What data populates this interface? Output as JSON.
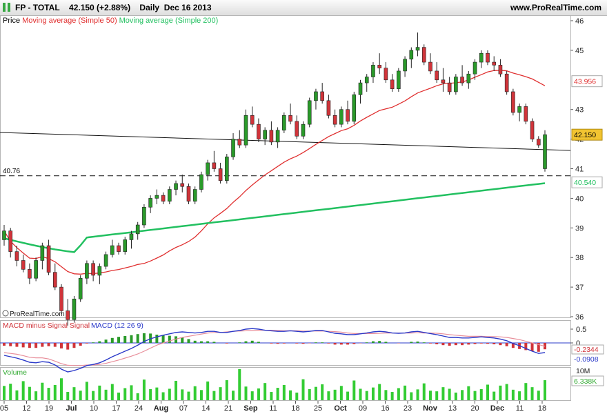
{
  "header": {
    "symbol": "FP - TOTAL",
    "last": "42.150 (+2.88%)",
    "period": "Daily",
    "date": "Dec 16 2013",
    "site": "www.ProRealTime.com"
  },
  "colors": {
    "up": "#2a9a2a",
    "down": "#d0343a",
    "ma50": "#e03030",
    "ma200": "#22c060",
    "macd": "#2a39c9",
    "volume": "#33cc33",
    "accent_tag": "#f2c431"
  },
  "chart_data": {
    "type": "candlestick",
    "legend": {
      "price": "Price",
      "ma50": "Moving average (Simple 50)",
      "ma200": "Moving average (Simple 200)"
    },
    "price_ticks": [
      46,
      45,
      43,
      42,
      41,
      40,
      39,
      38,
      37,
      36
    ],
    "tags": {
      "last": "42.150",
      "ma50": "43.956",
      "ma200": "40.540",
      "level": "40.76",
      "macd": "-0.2344",
      "macd_sig": "-0.0908",
      "vol": "6.338K",
      "vol_max": "10M"
    },
    "date_labels": [
      "05",
      "12",
      "19",
      "Jul",
      "10",
      "17",
      "24",
      "Aug",
      "07",
      "14",
      "21",
      "Sep",
      "11",
      "18",
      "25",
      "Oct",
      "09",
      "16",
      "23",
      "Nov",
      "13",
      "20",
      "Dec",
      "11",
      "18"
    ],
    "candles": [
      [
        38.6,
        39.1,
        38.4,
        38.9
      ],
      [
        38.9,
        39.0,
        38.0,
        38.2
      ],
      [
        38.2,
        38.4,
        37.7,
        37.9
      ],
      [
        37.9,
        38.1,
        37.5,
        37.6
      ],
      [
        37.6,
        37.8,
        37.1,
        37.3
      ],
      [
        37.3,
        38.0,
        37.2,
        37.9
      ],
      [
        37.9,
        38.5,
        37.6,
        38.4
      ],
      [
        38.4,
        38.6,
        37.4,
        37.5
      ],
      [
        37.5,
        37.8,
        36.9,
        37.0
      ],
      [
        37.0,
        37.1,
        36.1,
        36.2
      ],
      [
        36.2,
        36.6,
        35.7,
        35.9
      ],
      [
        35.9,
        36.7,
        35.8,
        36.6
      ],
      [
        36.6,
        37.4,
        36.5,
        37.3
      ],
      [
        37.3,
        37.9,
        37.1,
        37.8
      ],
      [
        37.8,
        37.9,
        37.2,
        37.4
      ],
      [
        37.4,
        37.8,
        37.1,
        37.7
      ],
      [
        37.7,
        38.2,
        37.6,
        38.1
      ],
      [
        38.1,
        38.6,
        38.0,
        38.4
      ],
      [
        38.4,
        38.5,
        38.1,
        38.2
      ],
      [
        38.2,
        38.7,
        38.1,
        38.6
      ],
      [
        38.6,
        38.9,
        38.3,
        38.8
      ],
      [
        38.8,
        39.2,
        38.6,
        39.1
      ],
      [
        39.1,
        39.8,
        39.0,
        39.7
      ],
      [
        39.7,
        40.1,
        39.5,
        40.0
      ],
      [
        40.0,
        40.3,
        39.8,
        40.1
      ],
      [
        40.1,
        40.2,
        39.8,
        39.9
      ],
      [
        39.9,
        40.4,
        39.8,
        40.3
      ],
      [
        40.3,
        40.6,
        40.1,
        40.5
      ],
      [
        40.5,
        40.8,
        40.2,
        40.4
      ],
      [
        40.4,
        40.5,
        39.8,
        39.9
      ],
      [
        39.9,
        40.4,
        39.8,
        40.3
      ],
      [
        40.3,
        40.9,
        40.2,
        40.8
      ],
      [
        40.8,
        41.3,
        40.6,
        41.2
      ],
      [
        41.2,
        41.6,
        40.9,
        41.0
      ],
      [
        41.0,
        41.2,
        40.5,
        40.6
      ],
      [
        40.6,
        41.5,
        40.5,
        41.4
      ],
      [
        41.4,
        42.2,
        41.3,
        42.0
      ],
      [
        42.0,
        42.3,
        41.7,
        41.8
      ],
      [
        41.8,
        43.0,
        41.7,
        42.8
      ],
      [
        42.8,
        43.1,
        42.4,
        42.5
      ],
      [
        42.5,
        42.7,
        41.9,
        42.0
      ],
      [
        42.0,
        42.4,
        41.8,
        42.3
      ],
      [
        42.3,
        42.6,
        41.8,
        41.9
      ],
      [
        41.9,
        42.4,
        41.7,
        42.3
      ],
      [
        42.3,
        42.9,
        42.2,
        42.8
      ],
      [
        42.8,
        43.2,
        42.5,
        42.6
      ],
      [
        42.6,
        42.8,
        42.0,
        42.1
      ],
      [
        42.1,
        42.6,
        42.0,
        42.5
      ],
      [
        42.5,
        43.4,
        42.4,
        43.3
      ],
      [
        43.3,
        43.7,
        43.0,
        43.6
      ],
      [
        43.6,
        43.9,
        43.2,
        43.3
      ],
      [
        43.3,
        43.5,
        42.7,
        42.8
      ],
      [
        42.8,
        43.0,
        42.4,
        42.5
      ],
      [
        42.5,
        43.1,
        42.4,
        43.0
      ],
      [
        43.0,
        43.3,
        42.5,
        42.6
      ],
      [
        42.6,
        43.6,
        42.5,
        43.5
      ],
      [
        43.5,
        44.0,
        43.2,
        43.9
      ],
      [
        43.9,
        44.2,
        43.6,
        44.1
      ],
      [
        44.1,
        44.6,
        43.9,
        44.5
      ],
      [
        44.5,
        44.9,
        44.2,
        44.4
      ],
      [
        44.4,
        44.6,
        43.9,
        44.0
      ],
      [
        44.0,
        44.2,
        43.6,
        43.7
      ],
      [
        43.7,
        44.4,
        43.6,
        44.3
      ],
      [
        44.3,
        44.8,
        44.1,
        44.7
      ],
      [
        44.7,
        45.1,
        44.4,
        45.0
      ],
      [
        45.0,
        45.6,
        44.8,
        45.1
      ],
      [
        45.1,
        45.2,
        44.5,
        44.6
      ],
      [
        44.6,
        44.9,
        44.2,
        44.3
      ],
      [
        44.3,
        44.6,
        43.9,
        44.0
      ],
      [
        44.0,
        44.4,
        43.6,
        43.9
      ],
      [
        43.9,
        44.1,
        43.5,
        43.6
      ],
      [
        43.6,
        44.2,
        43.5,
        44.1
      ],
      [
        44.1,
        44.5,
        43.8,
        43.9
      ],
      [
        43.9,
        44.3,
        43.7,
        44.2
      ],
      [
        44.2,
        44.7,
        44.0,
        44.6
      ],
      [
        44.6,
        45.0,
        44.4,
        44.9
      ],
      [
        44.9,
        45.0,
        44.5,
        44.6
      ],
      [
        44.6,
        44.8,
        44.3,
        44.5
      ],
      [
        44.5,
        44.7,
        44.1,
        44.2
      ],
      [
        44.2,
        44.3,
        43.5,
        43.6
      ],
      [
        43.6,
        43.7,
        42.8,
        42.9
      ],
      [
        42.9,
        43.2,
        42.6,
        43.1
      ],
      [
        43.1,
        43.2,
        42.5,
        42.6
      ],
      [
        42.6,
        42.7,
        41.9,
        42.0
      ],
      [
        42.0,
        42.1,
        41.7,
        41.8
      ],
      [
        41.0,
        42.3,
        40.9,
        42.15
      ]
    ]
  },
  "macd_data": {
    "label_hist": "MACD minus Signal Signal",
    "label_macd": "MACD (12 26 9)",
    "ticks": [
      "0.5",
      "0"
    ],
    "macd": [
      -0.45,
      -0.5,
      -0.55,
      -0.62,
      -0.7,
      -0.72,
      -0.68,
      -0.7,
      -0.8,
      -0.95,
      -1.05,
      -1.0,
      -0.92,
      -0.82,
      -0.78,
      -0.72,
      -0.62,
      -0.5,
      -0.4,
      -0.3,
      -0.2,
      -0.08,
      0.05,
      0.15,
      0.22,
      0.28,
      0.33,
      0.38,
      0.4,
      0.38,
      0.36,
      0.38,
      0.42,
      0.42,
      0.38,
      0.38,
      0.42,
      0.45,
      0.5,
      0.52,
      0.5,
      0.46,
      0.44,
      0.42,
      0.42,
      0.44,
      0.42,
      0.4,
      0.42,
      0.45,
      0.45,
      0.4,
      0.35,
      0.33,
      0.3,
      0.3,
      0.33,
      0.36,
      0.4,
      0.42,
      0.4,
      0.36,
      0.35,
      0.36,
      0.4,
      0.42,
      0.38,
      0.34,
      0.3,
      0.25,
      0.2,
      0.2,
      0.18,
      0.18,
      0.2,
      0.22,
      0.2,
      0.18,
      0.14,
      0.08,
      -0.02,
      -0.1,
      -0.2,
      -0.3,
      -0.38,
      -0.35
    ],
    "hist": [
      -0.1,
      -0.12,
      -0.14,
      -0.16,
      -0.18,
      -0.18,
      -0.14,
      -0.12,
      -0.14,
      -0.2,
      -0.24,
      -0.18,
      -0.1,
      -0.02,
      0.02,
      0.06,
      0.12,
      0.18,
      0.22,
      0.25,
      0.28,
      0.32,
      0.35,
      0.34,
      0.3,
      0.28,
      0.26,
      0.24,
      0.2,
      0.14,
      0.08,
      0.06,
      0.06,
      0.04,
      0.0,
      -0.02,
      0.0,
      0.02,
      0.06,
      0.08,
      0.04,
      0.0,
      -0.02,
      -0.03,
      -0.02,
      0.0,
      -0.02,
      -0.03,
      -0.01,
      0.02,
      0.02,
      -0.02,
      -0.06,
      -0.06,
      -0.06,
      -0.04,
      -0.01,
      0.02,
      0.06,
      0.07,
      0.04,
      0.0,
      -0.01,
      0.0,
      0.04,
      0.05,
      0.02,
      -0.02,
      -0.05,
      -0.08,
      -0.1,
      -0.08,
      -0.08,
      -0.06,
      -0.04,
      -0.02,
      -0.03,
      -0.05,
      -0.08,
      -0.12,
      -0.18,
      -0.22,
      -0.26,
      -0.3,
      -0.32,
      -0.23
    ]
  },
  "volume_data": {
    "label": "Volume",
    "values": [
      4.5,
      5.2,
      3.1,
      6.0,
      4.2,
      2.8,
      5.5,
      3.9,
      4.8,
      6.9,
      2.6,
      4.1,
      3.0,
      5.8,
      2.9,
      4.6,
      3.3,
      5.1,
      2.4,
      3.8,
      4.7,
      2.2,
      6.5,
      3.5,
      4.0,
      2.5,
      3.6,
      6.1,
      3.4,
      2.7,
      4.4,
      3.2,
      5.9,
      2.9,
      4.1,
      6.3,
      3.0,
      9.8,
      4.3,
      2.8,
      3.7,
      5.4,
      2.6,
      3.9,
      4.8,
      3.1,
      2.4,
      6.6,
      3.5,
      4.2,
      5.0,
      2.8,
      3.3,
      4.5,
      2.7,
      6.2,
      3.6,
      2.9,
      4.0,
      5.1,
      3.2,
      2.6,
      3.8,
      4.6,
      2.5,
      3.4,
      5.3,
      3.0,
      2.8,
      4.1,
      3.6,
      2.4,
      3.2,
      4.4,
      2.9,
      3.5,
      4.9,
      2.7,
      4.6,
      5.1,
      3.3,
      2.8,
      5.4,
      4.1,
      3.0,
      6.3
    ]
  }
}
